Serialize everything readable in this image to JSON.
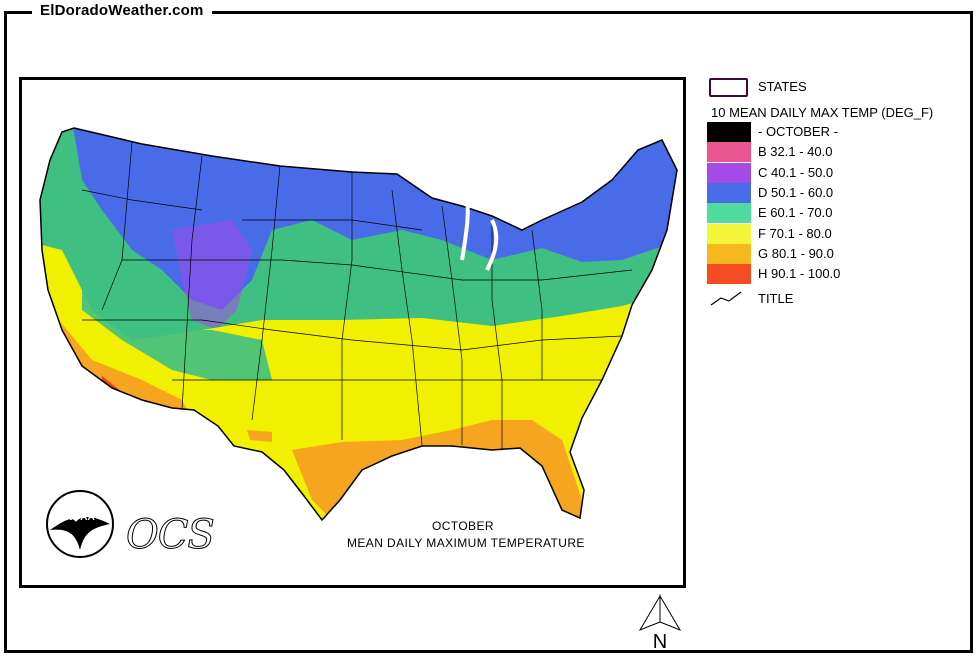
{
  "site": {
    "title": "ElDoradoWeather.com"
  },
  "map": {
    "caption_month": "OCTOBER",
    "caption_title": "MEAN DAILY MAXIMUM TEMPERATURE",
    "logo_text": "NOAA",
    "ocs_text": "OCS",
    "north_label": "N"
  },
  "legend": {
    "states_label": "STATES",
    "header": "10 MEAN DAILY MAX TEMP (DEG_F)",
    "title_label": "TITLE",
    "items": [
      {
        "label": "- OCTOBER -",
        "color": "#000000"
      },
      {
        "label": "B 32.1 - 40.0",
        "color": "#e8558f"
      },
      {
        "label": "C 40.1 - 50.0",
        "color": "#a44be8"
      },
      {
        "label": "D 50.1 - 60.0",
        "color": "#4a6be8"
      },
      {
        "label": "E 60.1 - 70.0",
        "color": "#4fdc9e"
      },
      {
        "label": "F 70.1 - 80.0",
        "color": "#f4f43a"
      },
      {
        "label": "G 80.1 - 90.0",
        "color": "#f5b81f"
      },
      {
        "label": "H 90.1 - 100.0",
        "color": "#f64a23"
      }
    ]
  },
  "colors": {
    "zone_c": "#a44be8",
    "zone_d": "#4a6be8",
    "zone_e": "#3fbf82",
    "zone_f": "#f0f000",
    "zone_g": "#f5a51f",
    "zone_h": "#f04018"
  }
}
